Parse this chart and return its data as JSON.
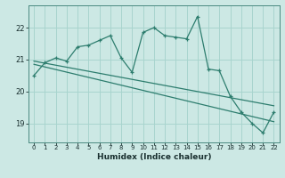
{
  "title": "",
  "xlabel": "Humidex (Indice chaleur)",
  "ylabel": "",
  "bg_color": "#cce8e4",
  "line_color": "#2d7d6e",
  "grid_color": "#a8d4ce",
  "xlim": [
    -0.5,
    22.5
  ],
  "ylim": [
    18.4,
    22.7
  ],
  "yticks": [
    19,
    20,
    21,
    22
  ],
  "xticks": [
    0,
    1,
    2,
    3,
    4,
    5,
    6,
    7,
    8,
    9,
    10,
    11,
    12,
    13,
    14,
    15,
    16,
    17,
    18,
    19,
    20,
    21,
    22
  ],
  "main_x": [
    0,
    1,
    2,
    3,
    4,
    5,
    6,
    7,
    8,
    9,
    10,
    11,
    12,
    13,
    14,
    15,
    16,
    17,
    18,
    19,
    20,
    21,
    22
  ],
  "main_y": [
    20.5,
    20.9,
    21.05,
    20.95,
    21.4,
    21.45,
    21.6,
    21.75,
    21.05,
    20.6,
    21.85,
    22.0,
    21.75,
    21.7,
    21.65,
    22.35,
    20.7,
    20.65,
    19.85,
    19.35,
    19.0,
    18.7,
    19.35
  ],
  "trend1_x": [
    0,
    22
  ],
  "trend1_y": [
    20.95,
    19.55
  ],
  "trend2_x": [
    0,
    22
  ],
  "trend2_y": [
    20.85,
    19.05
  ]
}
